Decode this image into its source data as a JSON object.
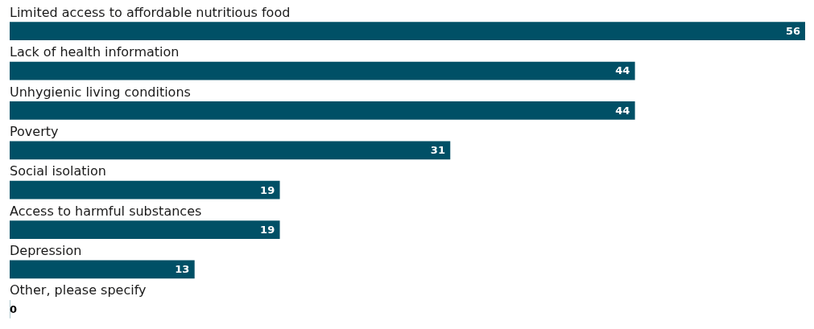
{
  "chart_data": {
    "type": "bar",
    "orientation": "horizontal",
    "categories": [
      "Limited access to affordable nutritious food",
      "Lack of health information",
      "Unhygienic living conditions",
      "Poverty",
      "Social isolation",
      "Access to harmful substances",
      "Depression",
      "Other, please specify"
    ],
    "values": [
      56,
      44,
      44,
      31,
      19,
      19,
      13,
      0
    ],
    "color": "#005066",
    "data_labels": true,
    "legend": false
  }
}
